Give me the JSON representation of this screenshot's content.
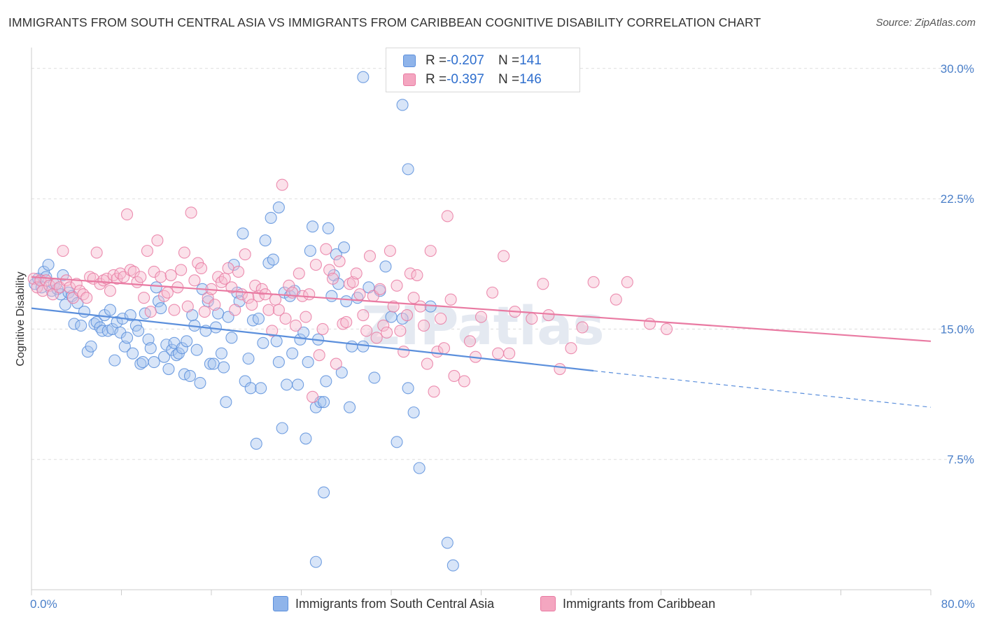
{
  "chart_data": {
    "type": "scatter",
    "title": "IMMIGRANTS FROM SOUTH CENTRAL ASIA VS IMMIGRANTS FROM CARIBBEAN COGNITIVE DISABILITY CORRELATION CHART",
    "source": "Source: ZipAtlas.com",
    "watermark": "ZIPatlas",
    "ylabel": "Cognitive Disability",
    "xlim": [
      0,
      80
    ],
    "ylim": [
      0,
      31.2
    ],
    "x_ticks": [
      "0.0%",
      "80.0%"
    ],
    "y_ticks": [
      {
        "value": 7.5,
        "label": "7.5%"
      },
      {
        "value": 15.0,
        "label": "15.0%"
      },
      {
        "value": 22.5,
        "label": "22.5%"
      },
      {
        "value": 30.0,
        "label": "30.0%"
      }
    ],
    "legend": [
      {
        "label": "R = ",
        "r": "-0.207",
        "n_label": "N = ",
        "n": "141",
        "color": "#8fb4ea"
      },
      {
        "label": "R = ",
        "r": "-0.397",
        "n_label": "N = ",
        "n": "146",
        "color": "#f4a6c0"
      }
    ],
    "series": [
      {
        "name": "Immigrants from South Central Asia",
        "color": "#5b8fdc",
        "fill": "#a9c6ef",
        "trend": {
          "x0": 0,
          "y0": 16.2,
          "x1": 50,
          "y1": 12.6,
          "dash_x1": 80,
          "dash_y1": 10.5
        },
        "points": [
          [
            0.3,
            17.6
          ],
          [
            0.6,
            17.9
          ],
          [
            0.9,
            17.4
          ],
          [
            1.1,
            18.3
          ],
          [
            1.3,
            18.0
          ],
          [
            1.5,
            18.7
          ],
          [
            1.8,
            17.2
          ],
          [
            2.0,
            17.6
          ],
          [
            2.3,
            17.3
          ],
          [
            2.6,
            17.0
          ],
          [
            2.8,
            18.1
          ],
          [
            3.0,
            16.4
          ],
          [
            3.3,
            17.1
          ],
          [
            3.6,
            16.9
          ],
          [
            3.8,
            15.3
          ],
          [
            4.1,
            16.5
          ],
          [
            4.4,
            15.2
          ],
          [
            4.7,
            16.0
          ],
          [
            5.0,
            13.7
          ],
          [
            5.3,
            14.0
          ],
          [
            5.6,
            15.3
          ],
          [
            5.8,
            15.4
          ],
          [
            6.1,
            15.1
          ],
          [
            6.3,
            14.9
          ],
          [
            6.5,
            15.8
          ],
          [
            6.8,
            14.9
          ],
          [
            7.0,
            16.1
          ],
          [
            7.2,
            15.0
          ],
          [
            7.4,
            13.2
          ],
          [
            7.6,
            15.4
          ],
          [
            7.9,
            14.8
          ],
          [
            8.1,
            15.6
          ],
          [
            8.3,
            14.0
          ],
          [
            8.5,
            14.5
          ],
          [
            8.8,
            15.8
          ],
          [
            9.0,
            13.6
          ],
          [
            9.3,
            15.2
          ],
          [
            9.5,
            14.9
          ],
          [
            9.7,
            13.0
          ],
          [
            9.9,
            13.1
          ],
          [
            10.1,
            15.9
          ],
          [
            10.4,
            14.4
          ],
          [
            10.6,
            13.9
          ],
          [
            10.9,
            13.1
          ],
          [
            11.1,
            17.4
          ],
          [
            11.3,
            16.6
          ],
          [
            11.5,
            16.2
          ],
          [
            11.8,
            13.4
          ],
          [
            12.0,
            14.1
          ],
          [
            12.2,
            12.7
          ],
          [
            12.5,
            13.8
          ],
          [
            12.7,
            14.2
          ],
          [
            12.9,
            13.5
          ],
          [
            13.1,
            13.6
          ],
          [
            13.4,
            13.9
          ],
          [
            13.6,
            12.4
          ],
          [
            13.8,
            14.3
          ],
          [
            14.1,
            12.3
          ],
          [
            14.3,
            15.8
          ],
          [
            14.5,
            15.2
          ],
          [
            14.7,
            13.8
          ],
          [
            15.0,
            11.9
          ],
          [
            15.2,
            17.3
          ],
          [
            15.5,
            14.9
          ],
          [
            15.7,
            16.6
          ],
          [
            15.9,
            13.0
          ],
          [
            16.2,
            13.0
          ],
          [
            16.4,
            15.1
          ],
          [
            16.6,
            15.9
          ],
          [
            16.9,
            13.6
          ],
          [
            17.1,
            12.8
          ],
          [
            17.3,
            10.8
          ],
          [
            17.5,
            15.7
          ],
          [
            17.8,
            14.5
          ],
          [
            18.0,
            18.7
          ],
          [
            18.3,
            17.1
          ],
          [
            18.5,
            16.6
          ],
          [
            18.8,
            20.5
          ],
          [
            19.0,
            12.0
          ],
          [
            19.3,
            13.3
          ],
          [
            19.5,
            11.6
          ],
          [
            19.7,
            15.5
          ],
          [
            20.0,
            8.4
          ],
          [
            20.2,
            15.6
          ],
          [
            20.4,
            11.6
          ],
          [
            20.6,
            14.2
          ],
          [
            20.8,
            20.1
          ],
          [
            21.1,
            18.8
          ],
          [
            21.3,
            21.4
          ],
          [
            21.5,
            19.0
          ],
          [
            21.8,
            14.3
          ],
          [
            22.0,
            13.1
          ],
          [
            22.3,
            9.3
          ],
          [
            22.5,
            17.1
          ],
          [
            22.7,
            11.8
          ],
          [
            23.0,
            16.9
          ],
          [
            23.2,
            13.6
          ],
          [
            23.4,
            17.2
          ],
          [
            23.7,
            11.8
          ],
          [
            23.9,
            14.4
          ],
          [
            24.2,
            14.8
          ],
          [
            24.4,
            8.7
          ],
          [
            24.6,
            13.1
          ],
          [
            24.8,
            19.5
          ],
          [
            25.0,
            20.9
          ],
          [
            25.3,
            10.5
          ],
          [
            25.5,
            14.4
          ],
          [
            25.7,
            10.8
          ],
          [
            26.0,
            10.8
          ],
          [
            26.2,
            12.0
          ],
          [
            26.4,
            20.8
          ],
          [
            26.7,
            16.9
          ],
          [
            26.9,
            18.1
          ],
          [
            27.1,
            19.3
          ],
          [
            27.3,
            17.6
          ],
          [
            27.6,
            12.5
          ],
          [
            27.8,
            19.7
          ],
          [
            28.0,
            16.6
          ],
          [
            28.3,
            10.5
          ],
          [
            28.5,
            14.0
          ],
          [
            29.0,
            16.8
          ],
          [
            29.5,
            14.0
          ],
          [
            30.0,
            17.4
          ],
          [
            30.5,
            12.2
          ],
          [
            31.0,
            17.2
          ],
          [
            31.5,
            18.6
          ],
          [
            32.0,
            15.7
          ],
          [
            32.5,
            8.5
          ],
          [
            33.0,
            15.6
          ],
          [
            33.5,
            11.6
          ],
          [
            34.0,
            10.2
          ],
          [
            34.5,
            7.0
          ],
          [
            35.5,
            16.3
          ],
          [
            37.0,
            2.7
          ],
          [
            37.5,
            1.4
          ],
          [
            26.0,
            5.6
          ],
          [
            25.3,
            1.6
          ],
          [
            29.5,
            29.5
          ],
          [
            33.0,
            27.9
          ],
          [
            33.5,
            24.2
          ],
          [
            22.0,
            22.0
          ]
        ]
      },
      {
        "name": "Immigrants from Caribbean",
        "color": "#e97aa2",
        "fill": "#f6bdd0",
        "trend": {
          "x0": 0,
          "y0": 18.0,
          "x1": 80,
          "y1": 14.3
        },
        "points": [
          [
            0.2,
            17.9
          ],
          [
            0.5,
            17.4
          ],
          [
            0.8,
            17.8
          ],
          [
            1.0,
            17.2
          ],
          [
            1.3,
            17.8
          ],
          [
            1.6,
            17.5
          ],
          [
            1.9,
            17.0
          ],
          [
            2.2,
            17.6
          ],
          [
            2.5,
            17.4
          ],
          [
            2.8,
            19.5
          ],
          [
            3.1,
            17.8
          ],
          [
            3.4,
            17.4
          ],
          [
            3.7,
            16.8
          ],
          [
            4.0,
            17.6
          ],
          [
            4.3,
            17.2
          ],
          [
            4.6,
            17.0
          ],
          [
            4.9,
            16.8
          ],
          [
            5.2,
            18.0
          ],
          [
            5.5,
            17.9
          ],
          [
            5.8,
            19.4
          ],
          [
            6.1,
            17.6
          ],
          [
            6.4,
            17.8
          ],
          [
            6.7,
            17.9
          ],
          [
            7.0,
            17.2
          ],
          [
            7.3,
            18.1
          ],
          [
            7.6,
            17.9
          ],
          [
            7.9,
            18.2
          ],
          [
            8.2,
            18.0
          ],
          [
            8.5,
            21.6
          ],
          [
            8.8,
            18.4
          ],
          [
            9.1,
            18.3
          ],
          [
            9.4,
            17.7
          ],
          [
            9.7,
            18.0
          ],
          [
            10.0,
            16.8
          ],
          [
            10.3,
            19.5
          ],
          [
            10.6,
            16.0
          ],
          [
            10.9,
            18.3
          ],
          [
            11.2,
            20.1
          ],
          [
            11.5,
            18.0
          ],
          [
            11.8,
            16.9
          ],
          [
            12.1,
            17.1
          ],
          [
            12.4,
            18.1
          ],
          [
            12.7,
            16.1
          ],
          [
            13.0,
            17.4
          ],
          [
            13.3,
            18.4
          ],
          [
            13.6,
            19.4
          ],
          [
            13.9,
            16.3
          ],
          [
            14.2,
            21.7
          ],
          [
            14.5,
            17.8
          ],
          [
            14.8,
            18.8
          ],
          [
            15.1,
            18.5
          ],
          [
            15.4,
            16.0
          ],
          [
            15.7,
            16.8
          ],
          [
            16.0,
            17.3
          ],
          [
            16.3,
            16.4
          ],
          [
            16.6,
            18.0
          ],
          [
            16.9,
            17.7
          ],
          [
            17.2,
            17.9
          ],
          [
            17.5,
            18.5
          ],
          [
            17.8,
            17.4
          ],
          [
            18.1,
            16.1
          ],
          [
            18.4,
            18.3
          ],
          [
            18.7,
            17.0
          ],
          [
            19.0,
            19.3
          ],
          [
            19.3,
            16.8
          ],
          [
            19.6,
            16.4
          ],
          [
            19.9,
            17.5
          ],
          [
            20.2,
            16.9
          ],
          [
            20.5,
            17.3
          ],
          [
            20.8,
            17.0
          ],
          [
            21.1,
            16.1
          ],
          [
            21.4,
            14.9
          ],
          [
            21.7,
            16.7
          ],
          [
            22.0,
            16.1
          ],
          [
            22.3,
            23.3
          ],
          [
            22.6,
            15.6
          ],
          [
            22.9,
            17.5
          ],
          [
            23.2,
            17.1
          ],
          [
            23.5,
            15.2
          ],
          [
            23.8,
            18.2
          ],
          [
            24.1,
            16.9
          ],
          [
            24.4,
            15.7
          ],
          [
            24.7,
            17.0
          ],
          [
            25.0,
            11.1
          ],
          [
            25.3,
            18.7
          ],
          [
            25.6,
            13.5
          ],
          [
            25.9,
            15.0
          ],
          [
            26.2,
            19.6
          ],
          [
            26.5,
            18.4
          ],
          [
            26.8,
            17.9
          ],
          [
            27.1,
            13.0
          ],
          [
            27.4,
            18.9
          ],
          [
            27.7,
            15.3
          ],
          [
            28.0,
            15.4
          ],
          [
            28.3,
            17.6
          ],
          [
            28.6,
            17.7
          ],
          [
            28.9,
            18.2
          ],
          [
            29.2,
            17.0
          ],
          [
            29.5,
            15.8
          ],
          [
            29.8,
            14.9
          ],
          [
            30.1,
            19.2
          ],
          [
            30.4,
            16.9
          ],
          [
            30.7,
            14.5
          ],
          [
            31.0,
            17.3
          ],
          [
            31.3,
            15.2
          ],
          [
            31.6,
            14.8
          ],
          [
            31.9,
            19.5
          ],
          [
            32.2,
            16.3
          ],
          [
            32.5,
            17.5
          ],
          [
            32.8,
            14.9
          ],
          [
            33.1,
            13.7
          ],
          [
            33.4,
            15.8
          ],
          [
            33.7,
            18.2
          ],
          [
            34.0,
            16.8
          ],
          [
            34.3,
            18.1
          ],
          [
            34.6,
            16.3
          ],
          [
            34.9,
            15.2
          ],
          [
            35.2,
            13.0
          ],
          [
            35.5,
            19.5
          ],
          [
            35.8,
            11.4
          ],
          [
            36.1,
            13.7
          ],
          [
            36.4,
            15.6
          ],
          [
            36.7,
            13.9
          ],
          [
            37.0,
            21.5
          ],
          [
            37.3,
            16.7
          ],
          [
            37.6,
            12.3
          ],
          [
            38.5,
            12.0
          ],
          [
            39.0,
            14.3
          ],
          [
            39.5,
            13.4
          ],
          [
            40.0,
            15.7
          ],
          [
            41.0,
            17.1
          ],
          [
            41.5,
            13.6
          ],
          [
            42.0,
            19.2
          ],
          [
            42.5,
            13.6
          ],
          [
            43.0,
            16.0
          ],
          [
            44.5,
            15.6
          ],
          [
            45.5,
            17.6
          ],
          [
            46.0,
            15.8
          ],
          [
            47.0,
            12.7
          ],
          [
            48.0,
            13.9
          ],
          [
            49.0,
            15.1
          ],
          [
            50.0,
            17.7
          ],
          [
            52.0,
            16.7
          ],
          [
            53.0,
            17.7
          ],
          [
            55.0,
            15.3
          ],
          [
            56.5,
            15.0
          ]
        ]
      }
    ]
  },
  "bottom_legend": [
    {
      "label": "Immigrants from South Central Asia",
      "color": "#8fb4ea"
    },
    {
      "label": "Immigrants from Caribbean",
      "color": "#f4a6c0"
    }
  ]
}
